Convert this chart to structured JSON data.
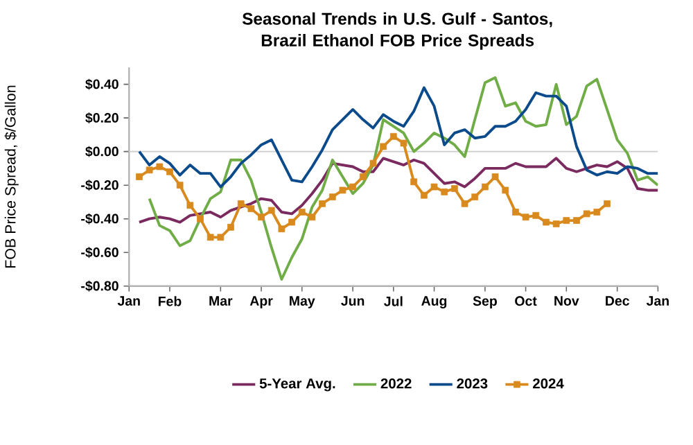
{
  "chart_data": {
    "type": "line",
    "title": "Seasonal Trends in U.S. Gulf - Santos, Brazil Ethanol FOB Price Spreads",
    "ylabel": "FOB Price Spread, $/Gallon",
    "categories": [
      "Jan",
      null,
      null,
      null,
      "Feb",
      null,
      null,
      null,
      null,
      "Mar",
      null,
      null,
      null,
      "Apr",
      null,
      null,
      null,
      "May",
      null,
      null,
      null,
      null,
      "Jun",
      null,
      null,
      null,
      "Jul",
      null,
      null,
      null,
      "Aug",
      null,
      null,
      null,
      null,
      "Sep",
      null,
      null,
      null,
      "Oct",
      null,
      null,
      null,
      "Nov",
      null,
      null,
      null,
      null,
      "Dec",
      null,
      null,
      null,
      "Jan"
    ],
    "ylim": [
      -0.8,
      0.5
    ],
    "yticks": [
      {
        "value": -0.8,
        "label": "-$0.80"
      },
      {
        "value": -0.6,
        "label": "-$0.60"
      },
      {
        "value": -0.4,
        "label": "-$0.40"
      },
      {
        "value": -0.2,
        "label": "-$0.20"
      },
      {
        "value": 0,
        "label": "$0.00"
      },
      {
        "value": 0.2,
        "label": "$0.20"
      },
      {
        "value": 0.4,
        "label": "$0.40"
      }
    ],
    "ref_lines": [
      {
        "axis": "y",
        "value": 0,
        "color": "#cccccc"
      }
    ],
    "legend": "bottom",
    "line_style": "solid",
    "series": [
      {
        "name": "5-Year Avg.",
        "color": "#7b2a5f",
        "marker": "none",
        "values": [
          null,
          -0.42,
          -0.4,
          -0.39,
          -0.4,
          -0.42,
          -0.38,
          -0.37,
          -0.36,
          -0.39,
          -0.35,
          -0.33,
          -0.31,
          -0.28,
          -0.29,
          -0.36,
          -0.37,
          -0.32,
          -0.25,
          -0.17,
          -0.07,
          -0.08,
          -0.09,
          -0.12,
          -0.12,
          -0.04,
          -0.06,
          -0.08,
          -0.05,
          -0.07,
          -0.13,
          -0.19,
          -0.18,
          -0.21,
          -0.16,
          -0.1,
          -0.1,
          -0.1,
          -0.07,
          -0.09,
          -0.09,
          -0.09,
          -0.04,
          -0.1,
          -0.12,
          -0.1,
          -0.08,
          -0.09,
          -0.06,
          -0.1,
          -0.22,
          -0.23,
          -0.23
        ]
      },
      {
        "name": "2022",
        "color": "#70ad47",
        "marker": "none",
        "values": [
          null,
          null,
          -0.28,
          -0.44,
          -0.47,
          -0.56,
          -0.53,
          -0.4,
          -0.28,
          -0.24,
          -0.05,
          -0.05,
          -0.17,
          -0.36,
          -0.57,
          -0.76,
          -0.63,
          -0.52,
          -0.33,
          -0.23,
          -0.05,
          -0.15,
          -0.25,
          -0.19,
          -0.08,
          0.19,
          0.15,
          0.11,
          0.0,
          0.05,
          0.11,
          0.08,
          0.04,
          -0.03,
          0.19,
          0.41,
          0.44,
          0.27,
          0.29,
          0.18,
          0.15,
          0.16,
          0.4,
          0.16,
          0.21,
          0.39,
          0.43,
          0.25,
          0.07,
          -0.01,
          -0.17,
          -0.15,
          -0.2
        ]
      },
      {
        "name": "2023",
        "color": "#0b4a8b",
        "marker": "none",
        "values": [
          null,
          0.0,
          -0.08,
          -0.03,
          -0.07,
          -0.14,
          -0.08,
          -0.13,
          -0.13,
          -0.21,
          -0.15,
          -0.07,
          -0.02,
          0.04,
          0.07,
          -0.05,
          -0.17,
          -0.18,
          -0.09,
          0.01,
          0.13,
          0.19,
          0.25,
          0.19,
          0.14,
          0.22,
          0.18,
          0.15,
          0.24,
          0.38,
          0.27,
          0.04,
          0.11,
          0.13,
          0.08,
          0.09,
          0.15,
          0.15,
          0.18,
          0.25,
          0.35,
          0.33,
          0.33,
          0.27,
          0.03,
          -0.11,
          -0.14,
          -0.12,
          -0.13,
          -0.09,
          -0.1,
          -0.13,
          -0.13
        ]
      },
      {
        "name": "2024",
        "color": "#d98a1e",
        "marker": "square",
        "values": [
          null,
          -0.15,
          -0.11,
          -0.09,
          -0.12,
          -0.2,
          -0.32,
          -0.4,
          -0.51,
          -0.51,
          -0.45,
          -0.31,
          -0.34,
          -0.39,
          -0.35,
          -0.46,
          -0.42,
          -0.36,
          -0.39,
          -0.31,
          -0.27,
          -0.23,
          -0.21,
          -0.15,
          -0.07,
          0.03,
          0.09,
          0.05,
          -0.18,
          -0.26,
          -0.21,
          -0.24,
          -0.22,
          -0.31,
          -0.27,
          -0.21,
          -0.15,
          -0.23,
          -0.36,
          -0.39,
          -0.38,
          -0.42,
          -0.43,
          -0.41,
          -0.41,
          -0.37,
          -0.36,
          -0.31,
          null,
          null,
          null,
          null,
          null
        ]
      }
    ]
  }
}
